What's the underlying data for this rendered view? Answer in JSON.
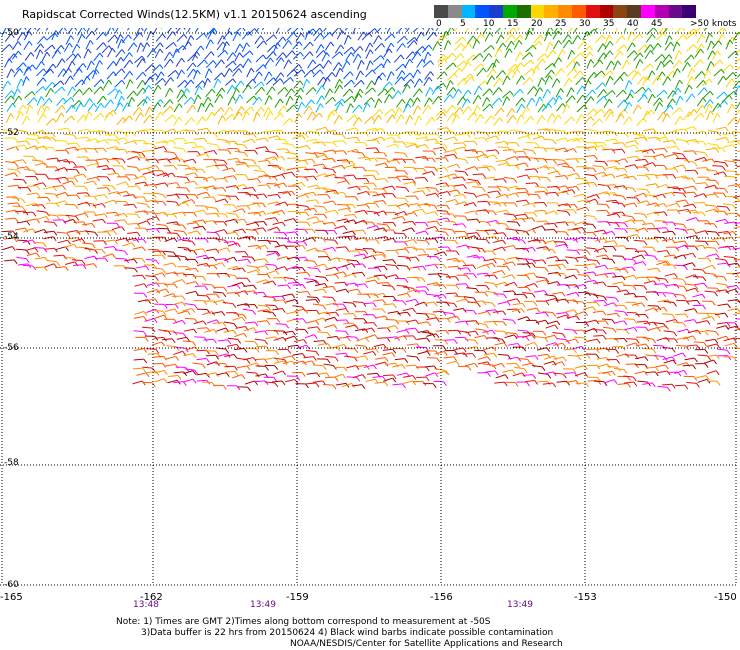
{
  "title": "Rapidscat Corrected Winds(12.5KM) v1.1 20150624 ascending",
  "legend": {
    "colors": [
      "#4a4a4a",
      "#8a8a8a",
      "#00b7ff",
      "#0055ff",
      "#1a3fd0",
      "#00a800",
      "#1e6e00",
      "#ffd700",
      "#ffb000",
      "#ff8c00",
      "#ff5a00",
      "#e01010",
      "#b00000",
      "#8b4513",
      "#5a3a20",
      "#ff00ff",
      "#b000b0",
      "#6a0a8a",
      "#3a0070"
    ],
    "labels": [
      "0",
      "5",
      "10",
      "15",
      "20",
      "25",
      "30",
      "35",
      "40",
      "45",
      ">50 knots"
    ]
  },
  "lat_labels": [
    "-50",
    "-52",
    "-54",
    "-56",
    "-58",
    "-60"
  ],
  "lon_labels": [
    "-165",
    "-162",
    "-159",
    "-156",
    "-153",
    "-150"
  ],
  "time_labels": [
    "13:48",
    "13:49",
    "13:49"
  ],
  "notes": {
    "line1": "Note: 1) Times are GMT 2)Times along bottom correspond to measurement at -50S",
    "line2": "3)Data buffer is 22 hrs from 20150624 4) Black wind barbs indicate possible contamination",
    "line3": "NOAA/NESDIS/Center for Satellite Applications and Research"
  }
}
